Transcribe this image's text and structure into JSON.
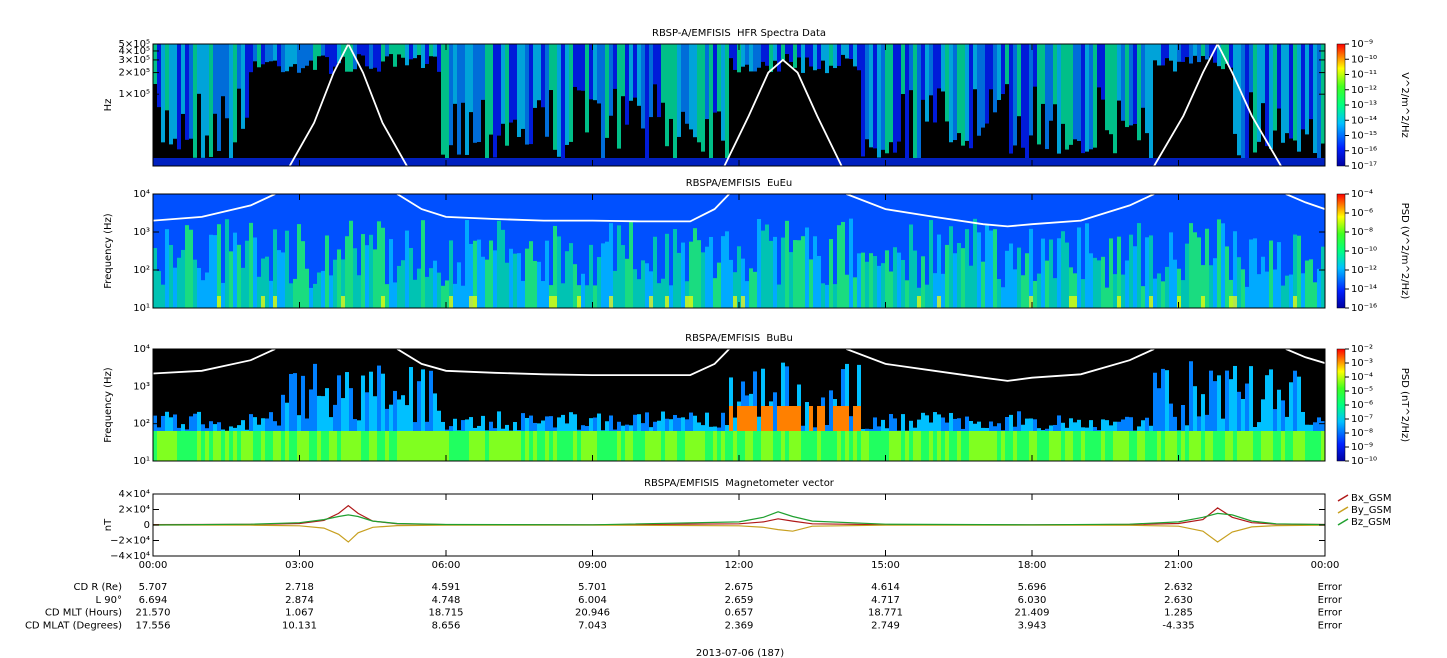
{
  "chart_data": [
    {
      "type": "spectrogram",
      "title": "RBSP-A/EMFISIS  HFR Spectra Data",
      "ylabel": "Hz",
      "log_scale": true,
      "xlim": [
        0,
        24
      ],
      "ylim": [
        10000,
        500000
      ],
      "yticks": [
        {
          "value": 100000,
          "label": "1×10⁵"
        },
        {
          "value": 200000,
          "label": "2×10⁵"
        },
        {
          "value": 300000,
          "label": "3×10⁵"
        },
        {
          "value": 400000,
          "label": "4×10⁵"
        },
        {
          "value": 500000,
          "label": "5×10⁵"
        }
      ],
      "colorbar_label": "V^2/m^2/Hz",
      "clim": [
        1e-17,
        1e-09
      ],
      "cticks": [
        {
          "value": 1e-09,
          "label": "10⁻⁹"
        },
        {
          "value": 1e-10,
          "label": "10⁻¹⁰"
        },
        {
          "value": 1e-11,
          "label": "10⁻¹¹"
        },
        {
          "value": 1e-12,
          "label": "10⁻¹²"
        },
        {
          "value": 1e-13,
          "label": "10⁻¹³"
        },
        {
          "value": 1e-14,
          "label": "10⁻¹⁴"
        },
        {
          "value": 1e-15,
          "label": "10⁻¹⁵"
        },
        {
          "value": 1e-16,
          "label": "10⁻¹⁶"
        },
        {
          "value": 1e-17,
          "label": "10⁻¹⁷"
        }
      ],
      "series": [
        {
          "color": "#ffffff",
          "x": [
            2.8,
            3.3,
            3.7,
            4,
            4.3,
            4.7,
            5.2,
            8,
            11.7,
            12.2,
            12.6,
            12.9,
            13.2,
            13.6,
            14.1,
            18,
            20.5,
            21.1,
            21.5,
            21.8,
            22.1,
            22.5,
            23.1
          ],
          "values": [
            10000,
            40000,
            200000,
            500000,
            200000,
            40000,
            10000,
            null,
            10000,
            50000,
            200000,
            300000,
            200000,
            50000,
            10000,
            null,
            10000,
            50000,
            200000,
            500000,
            200000,
            50000,
            10000
          ]
        }
      ]
    },
    {
      "type": "spectrogram",
      "title": "RBSPA/EMFISIS  EuEu",
      "ylabel": "Frequency (Hz)",
      "log_scale": true,
      "xlim": [
        0,
        24
      ],
      "ylim": [
        10,
        10000
      ],
      "yticks": [
        {
          "value": 10,
          "label": "10¹"
        },
        {
          "value": 100,
          "label": "10²"
        },
        {
          "value": 1000,
          "label": "10³"
        },
        {
          "value": 10000,
          "label": "10⁴"
        }
      ],
      "colorbar_label": "PSD (V^2/m^2/Hz)",
      "clim": [
        1e-16,
        0.0001
      ],
      "cticks": [
        {
          "value": 0.0001,
          "label": "10⁻⁴"
        },
        {
          "value": 1e-06,
          "label": "10⁻⁶"
        },
        {
          "value": 1e-08,
          "label": "10⁻⁸"
        },
        {
          "value": 1e-10,
          "label": "10⁻¹⁰"
        },
        {
          "value": 1e-12,
          "label": "10⁻¹²"
        },
        {
          "value": 1e-14,
          "label": "10⁻¹⁴"
        },
        {
          "value": 1e-16,
          "label": "10⁻¹⁶"
        }
      ],
      "series": [
        {
          "color": "#ffffff",
          "x": [
            0,
            1,
            2,
            2.5,
            3,
            5,
            5.5,
            6,
            7,
            8,
            9,
            10,
            11,
            11.5,
            11.8,
            13,
            14.2,
            15,
            16,
            17,
            17.5,
            18,
            19,
            20,
            20.5,
            22,
            23.2,
            23.6,
            24
          ],
          "values": [
            2000,
            2500,
            5000,
            10000,
            null,
            10000,
            4000,
            2500,
            2200,
            2000,
            2000,
            1900,
            1900,
            4000,
            10000,
            null,
            10000,
            4000,
            2500,
            1600,
            1400,
            1600,
            2000,
            5000,
            10000,
            null,
            10000,
            6000,
            4000
          ]
        }
      ]
    },
    {
      "type": "spectrogram",
      "title": "RBSPA/EMFISIS  BuBu",
      "ylabel": "Frequency (Hz)",
      "log_scale": true,
      "xlim": [
        0,
        24
      ],
      "ylim": [
        10,
        10000
      ],
      "yticks": [
        {
          "value": 10,
          "label": "10¹"
        },
        {
          "value": 100,
          "label": "10²"
        },
        {
          "value": 1000,
          "label": "10³"
        },
        {
          "value": 10000,
          "label": "10⁴"
        }
      ],
      "colorbar_label": "PSD (nT^2/Hz)",
      "clim": [
        1e-10,
        0.01
      ],
      "cticks": [
        {
          "value": 0.01,
          "label": "10⁻²"
        },
        {
          "value": 0.001,
          "label": "10⁻³"
        },
        {
          "value": 0.0001,
          "label": "10⁻⁴"
        },
        {
          "value": 1e-05,
          "label": "10⁻⁵"
        },
        {
          "value": 1e-06,
          "label": "10⁻⁶"
        },
        {
          "value": 1e-07,
          "label": "10⁻⁷"
        },
        {
          "value": 1e-08,
          "label": "10⁻⁸"
        },
        {
          "value": 1e-09,
          "label": "10⁻⁹"
        },
        {
          "value": 1e-10,
          "label": "10⁻¹⁰"
        }
      ],
      "series": [
        {
          "color": "#ffffff",
          "x": [
            0,
            1,
            2,
            2.5,
            3,
            5,
            5.5,
            6,
            7,
            8,
            9,
            10,
            11,
            11.5,
            11.8,
            13,
            14.2,
            15,
            16,
            17,
            17.5,
            18,
            19,
            20,
            20.5,
            22,
            23.2,
            23.6,
            24
          ],
          "values": [
            2200,
            2600,
            5000,
            10000,
            null,
            10000,
            4000,
            2600,
            2300,
            2100,
            2000,
            2000,
            2000,
            4000,
            10000,
            null,
            10000,
            4000,
            2600,
            1700,
            1400,
            1700,
            2100,
            5000,
            10000,
            null,
            10000,
            6000,
            4200
          ]
        }
      ]
    },
    {
      "type": "line",
      "title": "RBSPA/EMFISIS  Magnetometer vector",
      "ylabel": "nT",
      "xlim": [
        0,
        24
      ],
      "ylim": [
        -40000,
        40000
      ],
      "yticks": [
        {
          "value": -40000,
          "label": "−4×10⁴"
        },
        {
          "value": -20000,
          "label": "−2×10⁴"
        },
        0,
        {
          "value": 20000,
          "label": "2×10⁴"
        },
        {
          "value": 40000,
          "label": "4×10⁴"
        }
      ],
      "xticks": [
        {
          "value": 0,
          "label": "00:00"
        },
        {
          "value": 3,
          "label": "03:00"
        },
        {
          "value": 6,
          "label": "06:00"
        },
        {
          "value": 9,
          "label": "09:00"
        },
        {
          "value": 12,
          "label": "12:00"
        },
        {
          "value": 15,
          "label": "15:00"
        },
        {
          "value": 18,
          "label": "18:00"
        },
        {
          "value": 21,
          "label": "21:00"
        },
        {
          "value": 24,
          "label": "00:00"
        }
      ],
      "x": [
        0,
        2,
        3,
        3.5,
        3.8,
        4,
        4.2,
        4.5,
        5,
        6,
        9,
        12,
        12.5,
        12.8,
        13.1,
        13.5,
        15,
        18,
        20,
        21,
        21.5,
        21.8,
        22.1,
        22.5,
        23,
        24
      ],
      "series": [
        {
          "name": "Bx_GSM",
          "color": "#b01818",
          "values": [
            500,
            800,
            2000,
            6000,
            15000,
            25000,
            15000,
            5000,
            1500,
            500,
            300,
            1500,
            4000,
            8000,
            5000,
            1500,
            400,
            300,
            600,
            2000,
            7000,
            22000,
            10000,
            3000,
            1200,
            600
          ]
        },
        {
          "name": "By_GSM",
          "color": "#c8a020",
          "values": [
            0,
            -300,
            -1000,
            -4000,
            -12000,
            -22000,
            -10000,
            -3000,
            -800,
            -200,
            -100,
            -1000,
            -3000,
            -6000,
            -8000,
            -1500,
            -200,
            -100,
            -400,
            -1500,
            -8000,
            -22000,
            -9000,
            -2500,
            -800,
            -300
          ]
        },
        {
          "name": "Bz_GSM",
          "color": "#20a030",
          "values": [
            0,
            1000,
            3000,
            7000,
            11000,
            13000,
            11000,
            5000,
            2000,
            600,
            200,
            4000,
            10000,
            17000,
            11000,
            5000,
            1000,
            200,
            1000,
            4000,
            10000,
            15000,
            13000,
            5000,
            1500,
            500
          ]
        }
      ]
    }
  ],
  "ephemeris": {
    "rows": [
      {
        "label": "CD R (Re)",
        "values": [
          "5.707",
          "2.718",
          "4.591",
          "5.701",
          "2.675",
          "4.614",
          "5.696",
          "2.632",
          "Error"
        ]
      },
      {
        "label": "L 90°",
        "values": [
          "6.694",
          "2.874",
          "4.748",
          "6.004",
          "2.659",
          "4.717",
          "6.030",
          "2.630",
          "Error"
        ]
      },
      {
        "label": "CD MLT (Hours)",
        "values": [
          "21.570",
          "1.067",
          "18.715",
          "20.946",
          "0.657",
          "18.771",
          "21.409",
          "1.285",
          "Error"
        ]
      },
      {
        "label": "CD MLAT (Degrees)",
        "values": [
          "17.556",
          "10.131",
          "8.656",
          "7.043",
          "2.369",
          "2.749",
          "3.943",
          "-4.335",
          "Error"
        ]
      }
    ],
    "date": "2013-07-06 (187)"
  }
}
